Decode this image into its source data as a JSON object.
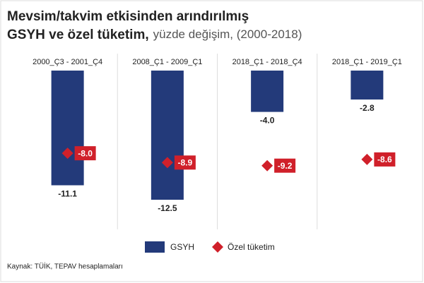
{
  "chart_data": {
    "type": "bar",
    "title": [
      "Mevsim/takvim etkisinden arındırılmış",
      "GSYH ve özel tüketim,"
    ],
    "subtitle": "yüzde değişim, (2000-2018)",
    "categories": [
      "2000_Ç3 - 2001_Ç4",
      "2008_Ç1 - 2009_Ç1",
      "2018_Ç1 - 2018_Ç4",
      "2018_Ç1 - 2019_Ç1"
    ],
    "series": [
      {
        "name": "GSYH",
        "color": "#233a7a",
        "mark": "bar",
        "values": [
          -11.1,
          -12.5,
          -4.0,
          -2.8
        ],
        "value_labels": [
          "-11.1",
          "-12.5",
          "-4.0",
          "-2.8"
        ]
      },
      {
        "name": "Özel tüketim",
        "color": "#d0202a",
        "mark": "diamond",
        "values": [
          -8.0,
          -8.9,
          -9.2,
          -8.6
        ],
        "value_labels": [
          "-8.0",
          "-8.9",
          "-9.2",
          "-8.6"
        ]
      }
    ],
    "ylim": [
      -14,
      0
    ],
    "source": "Kaynak: TÜİK, TEPAV hesaplamaları"
  }
}
